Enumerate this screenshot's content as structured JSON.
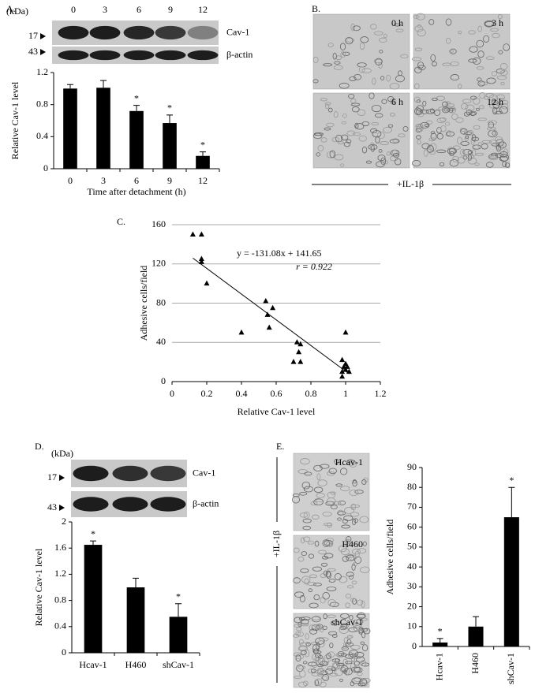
{
  "chart_data": [
    {
      "type": "bar",
      "categories": [
        "0",
        "3",
        "6",
        "9",
        "12"
      ],
      "values": [
        1.0,
        1.01,
        0.72,
        0.57,
        0.16
      ],
      "errors": [
        0.05,
        0.09,
        0.07,
        0.1,
        0.05
      ],
      "significance": [
        null,
        null,
        "*",
        "*",
        "*"
      ],
      "color": "#000000",
      "ylim": [
        0,
        1.2
      ],
      "yticks": [
        0,
        0.4,
        0.8,
        1.2
      ],
      "ylabel": "Relative Cav-1 level",
      "xlabel": "Time after detachment (h)"
    },
    {
      "type": "scatter",
      "x": [
        0.12,
        0.17,
        0.17,
        0.17,
        0.2,
        0.4,
        0.54,
        0.55,
        0.56,
        0.58,
        0.7,
        0.72,
        0.73,
        0.74,
        0.74,
        0.98,
        0.98,
        0.98,
        0.99,
        1.0,
        1.0,
        1.0,
        1.01,
        1.02
      ],
      "y": [
        150,
        150,
        122,
        125,
        100,
        50,
        82,
        68,
        55,
        75,
        20,
        40,
        30,
        20,
        38,
        5,
        10,
        22,
        15,
        50,
        18,
        12,
        15,
        10
      ],
      "color": "#000000",
      "fit": {
        "slope": -131.08,
        "intercept": 141.65
      },
      "equation": "y = -131.08x + 141.65",
      "r_label": "r = 0.922",
      "xlim": [
        0,
        1.2
      ],
      "xticks": [
        0,
        0.2,
        0.4,
        0.6,
        0.8,
        1,
        1.2
      ],
      "ylim": [
        0,
        160
      ],
      "yticks": [
        0,
        40,
        80,
        120,
        160
      ],
      "grid": true,
      "xlabel": "Relative Cav-1 level",
      "ylabel": "Adhesive cells/field"
    },
    {
      "type": "bar",
      "categories": [
        "Hcav-1",
        "H460",
        "shCav-1"
      ],
      "values": [
        1.65,
        1.0,
        0.55
      ],
      "errors": [
        0.06,
        0.14,
        0.2
      ],
      "significance": [
        "*",
        null,
        "*"
      ],
      "color": "#000000",
      "ylim": [
        0,
        2
      ],
      "yticks": [
        0,
        0.4,
        0.8,
        1.2,
        1.6,
        2
      ],
      "ylabel": "Relative Cav-1 level"
    },
    {
      "type": "bar",
      "categories": [
        "Hcav-1",
        "H460",
        "shCav-1"
      ],
      "values": [
        2,
        10,
        65
      ],
      "errors": [
        2,
        5,
        15
      ],
      "significance": [
        "*",
        null,
        "*"
      ],
      "color": "#000000",
      "ylim": [
        0,
        90
      ],
      "yticks": [
        0,
        10,
        20,
        30,
        40,
        50,
        60,
        70,
        80,
        90
      ],
      "ylabel": "Adhesive cells/field"
    }
  ],
  "figure": {
    "panels": [
      "A.",
      "B.",
      "C.",
      "D.",
      "E."
    ],
    "blot_a": {
      "unit": "(kDa)",
      "lanes": [
        "0",
        "3",
        "6",
        "9",
        "12"
      ],
      "markers": [
        "17",
        "43"
      ],
      "proteins": [
        "Cav-1",
        "β-actin"
      ]
    },
    "images_b": {
      "labels": [
        "0 h",
        "3 h",
        "6 h",
        "12 h"
      ],
      "treatment": "+IL-1β"
    },
    "blot_d": {
      "unit": "(kDa)",
      "markers": [
        "17",
        "43"
      ],
      "proteins": [
        "Cav-1",
        "β-actin"
      ]
    },
    "images_e": {
      "labels": [
        "Hcav-1",
        "H460",
        "shCav-1"
      ],
      "treatment": "+IL-1β"
    }
  }
}
